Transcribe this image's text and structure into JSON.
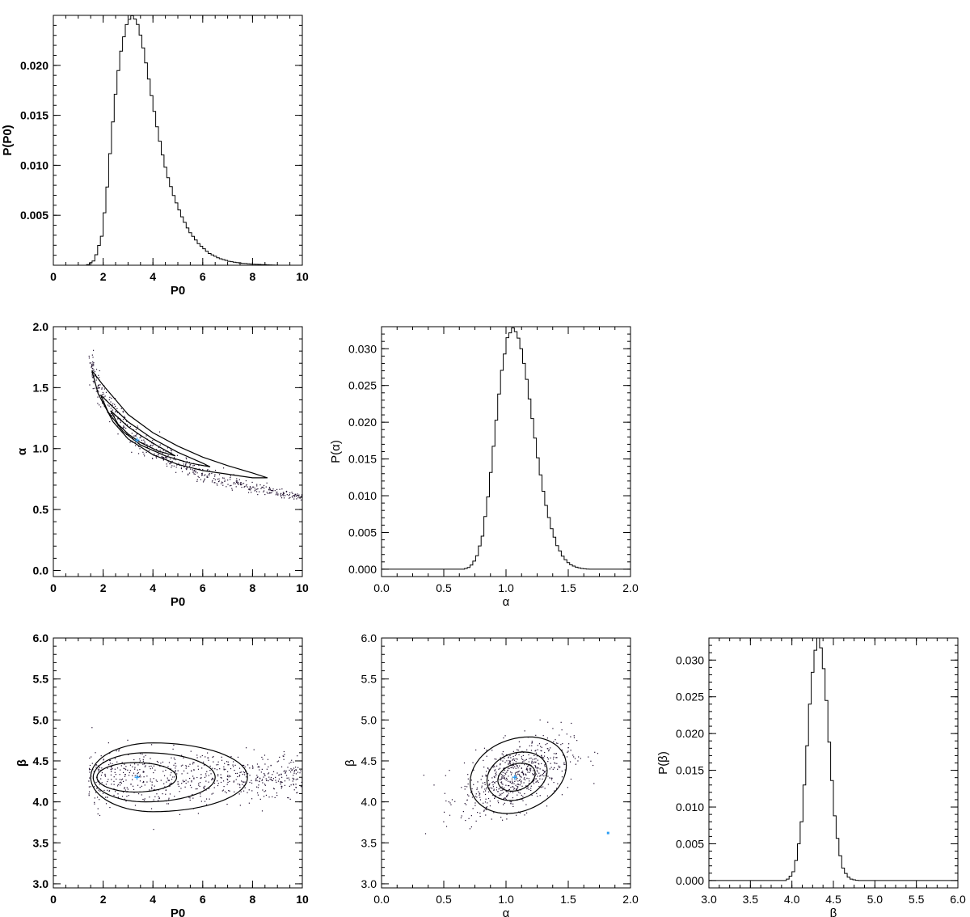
{
  "colors": {
    "axis": "#000000",
    "outer_region": "#9a2fe6",
    "middle_region": "#c79ad9",
    "inner_region": "#f7b8bf",
    "scatter": "#1b0a2a",
    "marker": "#2a9df4"
  },
  "chart_data": [
    {
      "id": "hist-p0",
      "type": "line",
      "style": "histogram-step",
      "xlabel": "P0",
      "ylabel": "P(P0)",
      "xlim": [
        0,
        10
      ],
      "ylim": [
        0,
        0.025
      ],
      "xticks": [
        0,
        2,
        4,
        6,
        8,
        10
      ],
      "xtick_labels": [
        "0",
        "2",
        "4",
        "6",
        "8",
        "10"
      ],
      "yticks": [
        0.005,
        0.01,
        0.015,
        0.02
      ],
      "ytick_labels": [
        "0.005",
        "0.010",
        "0.015",
        "0.020"
      ],
      "bold_labels": true,
      "series": [
        {
          "x": [
            0.0,
            1.3,
            1.6,
            1.9,
            2.1,
            2.3,
            2.5,
            2.7,
            2.9,
            3.1,
            3.3,
            3.5,
            3.7,
            3.9,
            4.1,
            4.3,
            4.5,
            4.8,
            5.1,
            5.4,
            5.8,
            6.2,
            6.6,
            7.0,
            7.5,
            8.0,
            8.5,
            9.0,
            10.0
          ],
          "y": [
            0.0,
            0.0,
            0.0005,
            0.003,
            0.0075,
            0.0135,
            0.0185,
            0.022,
            0.0242,
            0.025,
            0.0244,
            0.0225,
            0.0198,
            0.0168,
            0.014,
            0.0114,
            0.0092,
            0.0068,
            0.0049,
            0.0034,
            0.0021,
            0.0012,
            0.0007,
            0.0004,
            0.0002,
            0.0001,
            5e-05,
            0.0,
            0.0
          ]
        }
      ]
    },
    {
      "id": "hist-alpha",
      "type": "line",
      "style": "histogram-step",
      "xlabel": "α",
      "ylabel": "P(α)",
      "xlim": [
        0,
        2
      ],
      "ylim": [
        -0.001,
        0.033
      ],
      "xticks": [
        0,
        0.5,
        1.0,
        1.5,
        2.0
      ],
      "xtick_labels": [
        "0.0",
        "0.5",
        "1.0",
        "1.5",
        "2.0"
      ],
      "yticks": [
        0,
        0.005,
        0.01,
        0.015,
        0.02,
        0.025,
        0.03
      ],
      "ytick_labels": [
        "0.000",
        "0.005",
        "0.010",
        "0.015",
        "0.020",
        "0.025",
        "0.030"
      ],
      "bold_labels": false,
      "series": [
        {
          "x": [
            0.0,
            0.65,
            0.7,
            0.75,
            0.8,
            0.85,
            0.9,
            0.95,
            1.0,
            1.05,
            1.1,
            1.15,
            1.2,
            1.25,
            1.3,
            1.35,
            1.4,
            1.45,
            1.5,
            1.55,
            1.6,
            1.65,
            2.0
          ],
          "y": [
            0.0,
            0.0,
            0.0003,
            0.0015,
            0.0045,
            0.0105,
            0.0185,
            0.0265,
            0.0315,
            0.033,
            0.031,
            0.0265,
            0.0205,
            0.0145,
            0.0095,
            0.0058,
            0.0032,
            0.0016,
            0.0007,
            0.0003,
            0.0001,
            0.0,
            0.0
          ]
        }
      ]
    },
    {
      "id": "hist-beta",
      "type": "line",
      "style": "histogram-step",
      "xlabel": "β",
      "ylabel": "P(β)",
      "xlim": [
        3,
        6
      ],
      "ylim": [
        -0.001,
        0.033
      ],
      "xticks": [
        3.0,
        3.5,
        4.0,
        4.5,
        5.0,
        5.5,
        6.0
      ],
      "xtick_labels": [
        "3.0",
        "3.5",
        "4.0",
        "4.5",
        "5.0",
        "5.5",
        "6.0"
      ],
      "yticks": [
        0,
        0.005,
        0.01,
        0.015,
        0.02,
        0.025,
        0.03
      ],
      "ytick_labels": [
        "0.000",
        "0.005",
        "0.010",
        "0.015",
        "0.020",
        "0.025",
        "0.030"
      ],
      "bold_labels": false,
      "series": [
        {
          "x": [
            3.0,
            3.9,
            3.95,
            4.0,
            4.05,
            4.1,
            4.15,
            4.2,
            4.25,
            4.3,
            4.35,
            4.4,
            4.45,
            4.5,
            4.55,
            4.6,
            4.65,
            4.7,
            4.75,
            4.8,
            6.0
          ],
          "y": [
            0.0,
            0.0,
            0.0003,
            0.0012,
            0.0035,
            0.008,
            0.0155,
            0.024,
            0.0305,
            0.033,
            0.031,
            0.0245,
            0.016,
            0.0088,
            0.0042,
            0.0017,
            0.0006,
            0.0002,
            5e-05,
            0.0,
            0.0
          ]
        }
      ]
    },
    {
      "id": "scatter-p0-alpha",
      "type": "scatter",
      "xlabel": "P0",
      "ylabel": "α",
      "xlim": [
        0,
        10
      ],
      "ylim": [
        -0.05,
        2.0
      ],
      "xticks": [
        0,
        2,
        4,
        6,
        8,
        10
      ],
      "xtick_labels": [
        "0",
        "2",
        "4",
        "6",
        "8",
        "10"
      ],
      "yticks": [
        0,
        0.5,
        1.0,
        1.5,
        2.0
      ],
      "ytick_labels": [
        "0.0",
        "0.5",
        "1.0",
        "1.5",
        "2.0"
      ],
      "bold_labels": true,
      "marker": {
        "x": 3.36,
        "y": 1.07
      },
      "regions": [
        {
          "name": "",
          "level": "outer",
          "upper": [
            [
              1.55,
              1.64
            ],
            [
              2.0,
              1.52
            ],
            [
              3.0,
              1.28
            ],
            [
              4.0,
              1.13
            ],
            [
              5.0,
              1.02
            ],
            [
              6.0,
              0.93
            ],
            [
              7.0,
              0.86
            ],
            [
              8.0,
              0.8
            ],
            [
              8.6,
              0.76
            ]
          ],
          "lower": [
            [
              1.55,
              1.64
            ],
            [
              1.8,
              1.45
            ],
            [
              2.4,
              1.22
            ],
            [
              3.0,
              1.08
            ],
            [
              4.0,
              0.95
            ],
            [
              5.0,
              0.87
            ],
            [
              6.0,
              0.82
            ],
            [
              7.0,
              0.79
            ],
            [
              8.0,
              0.76
            ],
            [
              8.6,
              0.76
            ]
          ]
        },
        {
          "name": "",
          "level": "middle",
          "upper": [
            [
              1.9,
              1.44
            ],
            [
              2.4,
              1.34
            ],
            [
              3.0,
              1.22
            ],
            [
              4.0,
              1.08
            ],
            [
              5.0,
              0.97
            ],
            [
              6.0,
              0.88
            ],
            [
              6.3,
              0.85
            ]
          ],
          "lower": [
            [
              1.9,
              1.44
            ],
            [
              2.2,
              1.3
            ],
            [
              2.8,
              1.14
            ],
            [
              3.5,
              1.03
            ],
            [
              4.5,
              0.94
            ],
            [
              5.5,
              0.88
            ],
            [
              6.3,
              0.85
            ]
          ]
        },
        {
          "name": "",
          "level": "inner",
          "upper": [
            [
              2.3,
              1.31
            ],
            [
              3.0,
              1.18
            ],
            [
              3.5,
              1.11
            ],
            [
              4.2,
              1.02
            ],
            [
              4.9,
              0.94
            ]
          ],
          "lower": [
            [
              2.3,
              1.31
            ],
            [
              2.6,
              1.2
            ],
            [
              3.0,
              1.12
            ],
            [
              3.5,
              1.05
            ],
            [
              4.2,
              0.98
            ],
            [
              4.9,
              0.94
            ]
          ]
        }
      ],
      "scatter_cloud": {
        "n": 520,
        "density_note": ""
      }
    },
    {
      "id": "scatter-p0-beta",
      "type": "scatter",
      "xlabel": "P0",
      "ylabel": "β",
      "xlim": [
        0,
        10
      ],
      "ylim": [
        2.95,
        6.0
      ],
      "xticks": [
        0,
        2,
        4,
        6,
        8,
        10
      ],
      "xtick_labels": [
        "0",
        "2",
        "4",
        "6",
        "8",
        "10"
      ],
      "yticks": [
        3.0,
        3.5,
        4.0,
        4.5,
        5.0,
        5.5,
        6.0
      ],
      "ytick_labels": [
        "3.0",
        "3.5",
        "4.0",
        "4.5",
        "5.0",
        "5.5",
        "6.0"
      ],
      "bold_labels": true,
      "marker": {
        "x": 3.36,
        "y": 4.3
      },
      "regions": [
        {
          "name": "",
          "level": "outer",
          "ellipse": {
            "cx": 4.0,
            "cy": 4.3,
            "rx_left": 2.5,
            "rx_right": 3.8,
            "ry": 0.42
          }
        },
        {
          "name": "",
          "level": "middle",
          "ellipse": {
            "cx": 3.7,
            "cy": 4.3,
            "rx_left": 2.1,
            "rx_right": 2.8,
            "ry": 0.3
          }
        },
        {
          "name": "",
          "level": "inner",
          "ellipse": {
            "cx": 3.3,
            "cy": 4.3,
            "rx_left": 1.55,
            "rx_right": 1.65,
            "ry": 0.18
          }
        }
      ],
      "scatter_cloud": {
        "n": 700
      }
    },
    {
      "id": "scatter-alpha-beta",
      "type": "scatter",
      "xlabel": "α",
      "ylabel": "β",
      "xlim": [
        0,
        2
      ],
      "ylim": [
        2.95,
        6.0
      ],
      "xticks": [
        0,
        0.5,
        1.0,
        1.5,
        2.0
      ],
      "xtick_labels": [
        "0.0",
        "0.5",
        "1.0",
        "1.5",
        "2.0"
      ],
      "yticks": [
        3.0,
        3.5,
        4.0,
        4.5,
        5.0,
        5.5,
        6.0
      ],
      "ytick_labels": [
        "3.0",
        "3.5",
        "4.0",
        "4.5",
        "5.0",
        "5.5",
        "6.0"
      ],
      "bold_labels": false,
      "marker": {
        "x": 1.07,
        "y": 4.3
      },
      "outlier": {
        "x": 1.82,
        "y": 3.62
      },
      "regions": [
        {
          "name": "",
          "level": "outer",
          "ellipse": {
            "cx": 1.08,
            "cy": 4.32,
            "rx_left": 0.38,
            "rx_right": 0.42,
            "ry": 0.44,
            "tilt": -22
          }
        },
        {
          "name": "",
          "level": "middle",
          "ellipse": {
            "cx": 1.08,
            "cy": 4.31,
            "rx_left": 0.24,
            "rx_right": 0.26,
            "ry": 0.28,
            "tilt": -22
          }
        },
        {
          "name": "",
          "level": "inner",
          "ellipse": {
            "cx": 1.08,
            "cy": 4.3,
            "rx_left": 0.15,
            "rx_right": 0.16,
            "ry": 0.16,
            "tilt": -20
          }
        }
      ],
      "scatter_cloud": {
        "n": 650
      }
    }
  ]
}
